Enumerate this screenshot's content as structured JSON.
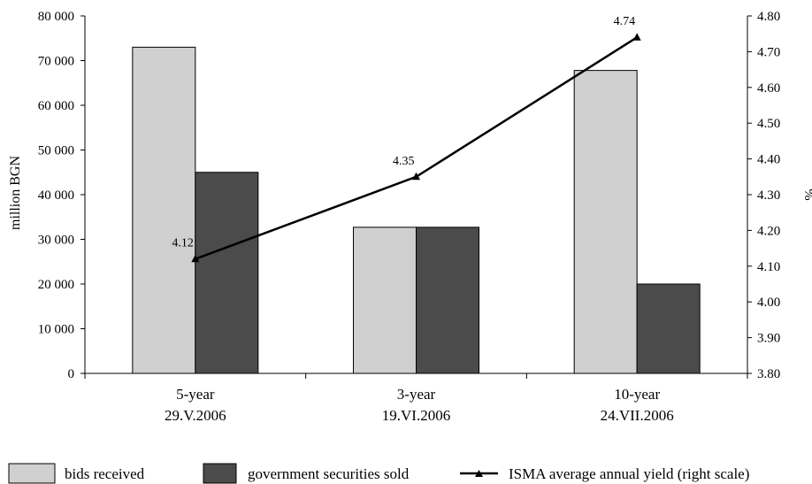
{
  "chart_data": {
    "type": "bar",
    "categories": [
      [
        "5-year",
        "29.V.2006"
      ],
      [
        "3-year",
        "19.VI.2006"
      ],
      [
        "10-year",
        "24.VII.2006"
      ]
    ],
    "series": [
      {
        "name": "bids received",
        "type": "bar",
        "axis": "left",
        "color": "#d0d0d0",
        "values": [
          73000,
          32700,
          67800
        ]
      },
      {
        "name": "government securities sold",
        "type": "bar",
        "axis": "left",
        "color": "#4b4b4b",
        "values": [
          45000,
          32700,
          20000
        ]
      },
      {
        "name": "ISMA average annual yield (right scale)",
        "type": "line",
        "axis": "right",
        "color": "#000000",
        "values": [
          4.12,
          4.35,
          4.74
        ],
        "labels": [
          "4.12",
          "4.35",
          "4.74"
        ]
      }
    ],
    "ylabel": "million BGN",
    "y2label": "%",
    "ylim": [
      0,
      80000
    ],
    "y2lim": [
      3.8,
      4.8
    ],
    "yticks": [
      "0",
      "10 000",
      "20 000",
      "30 000",
      "40 000",
      "50 000",
      "60 000",
      "70 000",
      "80 000"
    ],
    "y2ticks": [
      "3.80",
      "3.90",
      "4.00",
      "4.10",
      "4.20",
      "4.30",
      "4.40",
      "4.50",
      "4.60",
      "4.70",
      "4.80"
    ],
    "legend_position": "bottom",
    "grid": false
  }
}
